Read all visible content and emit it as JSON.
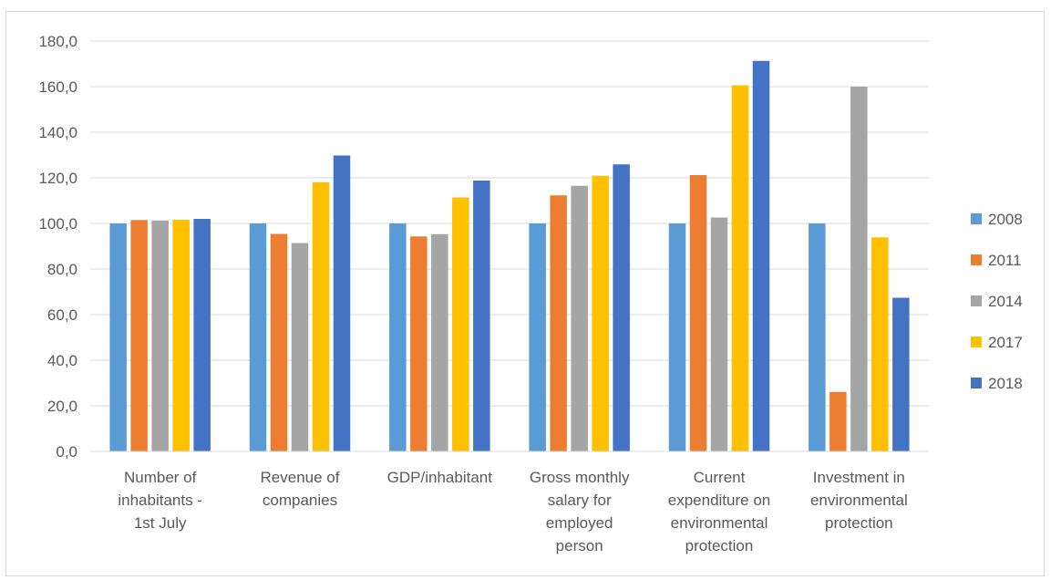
{
  "chart_data": {
    "type": "bar",
    "title": "",
    "xlabel": "",
    "ylabel": "",
    "ylim": [
      0,
      180
    ],
    "y_tick_step": 20,
    "y_tick_format": "0,0",
    "grid": true,
    "legend_position": "right",
    "categories": [
      [
        "Number of",
        "inhabitants -",
        "1st July"
      ],
      [
        "Revenue of",
        "companies"
      ],
      [
        "GDP/inhabitant"
      ],
      [
        "Gross monthly",
        "salary for",
        "employed",
        "person"
      ],
      [
        "Current",
        "expenditure on",
        "environmental",
        "protection"
      ],
      [
        "Investment in",
        "environmental",
        "protection"
      ]
    ],
    "series": [
      {
        "name": "2008",
        "color": "#5B9BD5",
        "values": [
          100.0,
          100.0,
          100.0,
          100.0,
          100.0,
          100.0
        ]
      },
      {
        "name": "2011",
        "color": "#ED7D31",
        "values": [
          101.5,
          95.4,
          94.3,
          112.3,
          121.2,
          26.1
        ]
      },
      {
        "name": "2014",
        "color": "#A5A5A5",
        "values": [
          101.3,
          91.4,
          95.3,
          116.5,
          102.6,
          160.0
        ]
      },
      {
        "name": "2017",
        "color": "#FFC000",
        "values": [
          101.6,
          118.1,
          111.4,
          120.9,
          160.6,
          93.9
        ]
      },
      {
        "name": "2018",
        "color": "#4472C4",
        "values": [
          102.0,
          129.8,
          118.8,
          125.9,
          171.3,
          67.4
        ]
      }
    ]
  }
}
